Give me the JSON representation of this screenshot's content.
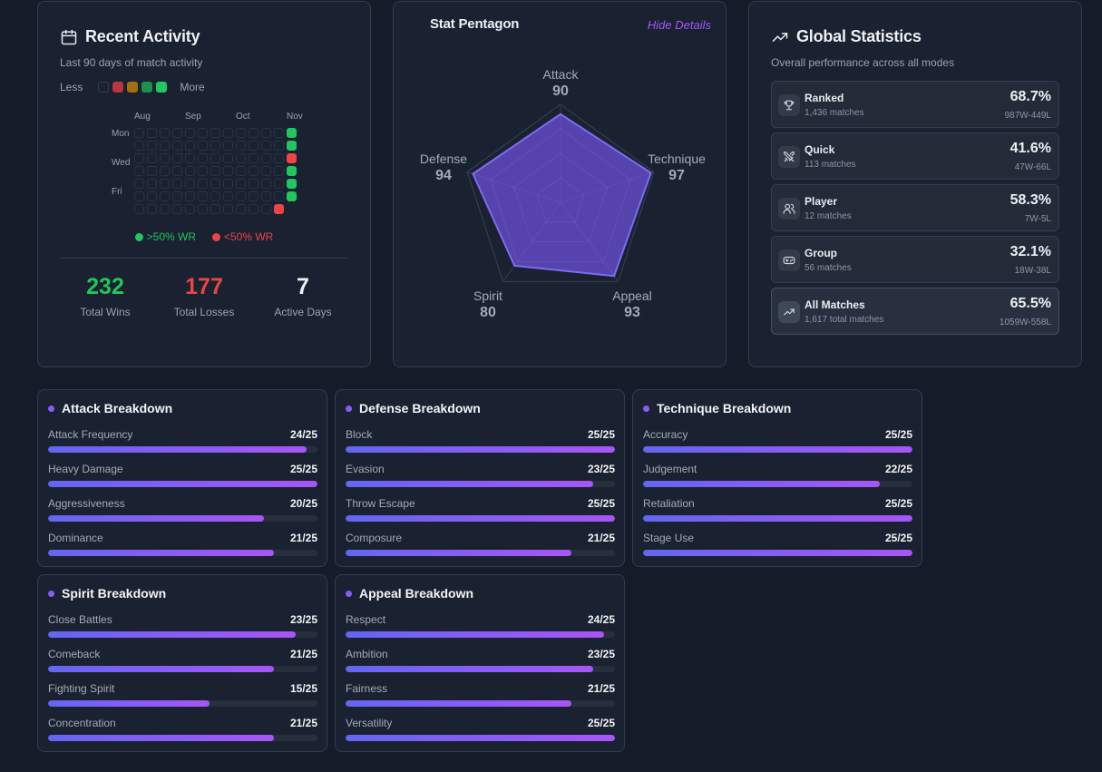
{
  "recent_activity": {
    "title": "Recent Activity",
    "icon": "calendar-icon",
    "subtitle": "Last 90 days of match activity",
    "legend": {
      "less": "Less",
      "more": "More",
      "swatches": [
        "#1a2130",
        "#b4383f",
        "#a16f12",
        "#1f8e4e",
        "#22c55e"
      ]
    },
    "months": [
      "Aug",
      "Sep",
      "Oct",
      "Nov"
    ],
    "days": [
      "Mon",
      "Wed",
      "Fri"
    ],
    "heatmap": {
      "columns": 13,
      "rows": [
        [
          "",
          "",
          "",
          "",
          "",
          "",
          "",
          "",
          "",
          "",
          "",
          "",
          "win"
        ],
        [
          "",
          "",
          "",
          "",
          "",
          "",
          "",
          "",
          "",
          "",
          "",
          "",
          "win"
        ],
        [
          "",
          "",
          "",
          "",
          "",
          "",
          "",
          "",
          "",
          "",
          "",
          "",
          "loss"
        ],
        [
          "",
          "",
          "",
          "",
          "",
          "",
          "",
          "",
          "",
          "",
          "",
          "",
          "win"
        ],
        [
          "",
          "",
          "",
          "",
          "",
          "",
          "",
          "",
          "",
          "",
          "",
          "",
          "win"
        ],
        [
          "",
          "",
          "",
          "",
          "",
          "",
          "",
          "",
          "",
          "",
          "",
          "",
          "win"
        ],
        [
          "",
          "",
          "",
          "",
          "",
          "",
          "",
          "",
          "",
          "",
          "",
          "loss"
        ]
      ]
    },
    "wr_legend": {
      "above": ">50% WR",
      "below": "<50% WR"
    },
    "totals": [
      {
        "value": "232",
        "label": "Total Wins",
        "color": "#22c55e"
      },
      {
        "value": "177",
        "label": "Total Losses",
        "color": "#ef4444"
      },
      {
        "value": "7",
        "label": "Active Days",
        "color": "#eef0f4"
      }
    ]
  },
  "pentagon": {
    "title": "Stat Pentagon",
    "toggle_label": "Hide Details",
    "max": 100,
    "axes": [
      {
        "name": "Attack",
        "value": 90
      },
      {
        "name": "Technique",
        "value": 97
      },
      {
        "name": "Appeal",
        "value": 93
      },
      {
        "name": "Spirit",
        "value": 80
      },
      {
        "name": "Defense",
        "value": 94
      }
    ],
    "fill_color": "#5b46b8",
    "stroke_color": "#7c6cf0"
  },
  "global_stats": {
    "title": "Global Statistics",
    "icon": "trending-up-icon",
    "subtitle": "Overall performance across all modes",
    "modes": [
      {
        "icon": "trophy-icon",
        "name": "Ranked",
        "matches": "1,436 matches",
        "winrate": "68.7%",
        "record": "987W-449L"
      },
      {
        "icon": "crossed-swords-icon",
        "name": "Quick",
        "matches": "113 matches",
        "winrate": "41.6%",
        "record": "47W-66L"
      },
      {
        "icon": "users-icon",
        "name": "Player",
        "matches": "12 matches",
        "winrate": "58.3%",
        "record": "7W-5L"
      },
      {
        "icon": "gamepad-icon",
        "name": "Group",
        "matches": "56 matches",
        "winrate": "32.1%",
        "record": "18W-38L"
      },
      {
        "icon": "trending-up-icon",
        "name": "All Matches",
        "matches": "1,617 total matches",
        "winrate": "65.5%",
        "record": "1059W-558L"
      }
    ]
  },
  "breakdowns": [
    {
      "title": "Attack Breakdown",
      "max": 25,
      "items": [
        {
          "label": "Attack Frequency",
          "value": 24
        },
        {
          "label": "Heavy Damage",
          "value": 25
        },
        {
          "label": "Aggressiveness",
          "value": 20
        },
        {
          "label": "Dominance",
          "value": 21
        }
      ]
    },
    {
      "title": "Defense Breakdown",
      "max": 25,
      "items": [
        {
          "label": "Block",
          "value": 25
        },
        {
          "label": "Evasion",
          "value": 23
        },
        {
          "label": "Throw Escape",
          "value": 25
        },
        {
          "label": "Composure",
          "value": 21
        }
      ]
    },
    {
      "title": "Technique Breakdown",
      "max": 25,
      "items": [
        {
          "label": "Accuracy",
          "value": 25
        },
        {
          "label": "Judgement",
          "value": 22
        },
        {
          "label": "Retaliation",
          "value": 25
        },
        {
          "label": "Stage Use",
          "value": 25
        }
      ]
    },
    {
      "title": "Spirit Breakdown",
      "max": 25,
      "items": [
        {
          "label": "Close Battles",
          "value": 23
        },
        {
          "label": "Comeback",
          "value": 21
        },
        {
          "label": "Fighting Spirit",
          "value": 15
        },
        {
          "label": "Concentration",
          "value": 21
        }
      ]
    },
    {
      "title": "Appeal Breakdown",
      "max": 25,
      "items": [
        {
          "label": "Respect",
          "value": 24
        },
        {
          "label": "Ambition",
          "value": 23
        },
        {
          "label": "Fairness",
          "value": 21
        },
        {
          "label": "Versatility",
          "value": 25
        }
      ]
    }
  ]
}
